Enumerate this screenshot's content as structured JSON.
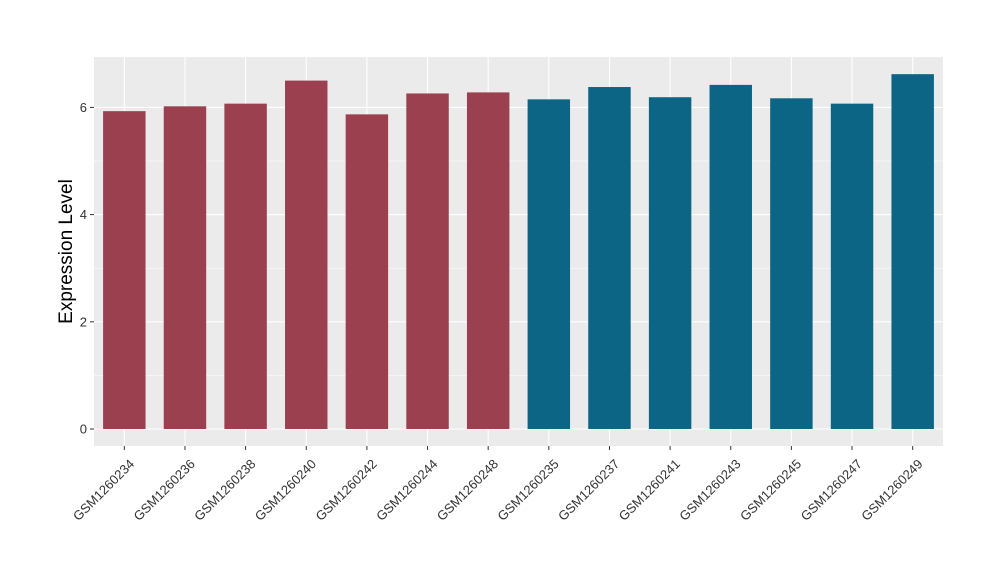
{
  "chart_data": {
    "type": "bar",
    "title": "",
    "xlabel": "",
    "ylabel": "Expression Level",
    "ylim": [
      0,
      6.9
    ],
    "yticks": [
      0,
      2,
      4,
      6
    ],
    "grid": true,
    "legend": "none",
    "colors": {
      "group_a": "#9a404e",
      "group_b": "#0c6584",
      "panel_background": "#ebebeb",
      "gridline": "#ffffff"
    },
    "categories": [
      "GSM1260234",
      "GSM1260236",
      "GSM1260238",
      "GSM1260240",
      "GSM1260242",
      "GSM1260244",
      "GSM1260248",
      "GSM1260235",
      "GSM1260237",
      "GSM1260241",
      "GSM1260243",
      "GSM1260245",
      "GSM1260247",
      "GSM1260249"
    ],
    "values": [
      5.93,
      6.02,
      6.07,
      6.5,
      5.87,
      6.26,
      6.28,
      6.15,
      6.38,
      6.19,
      6.42,
      6.17,
      6.07,
      6.62
    ],
    "bar_groups": [
      "a",
      "a",
      "a",
      "a",
      "a",
      "a",
      "a",
      "b",
      "b",
      "b",
      "b",
      "b",
      "b",
      "b"
    ]
  }
}
